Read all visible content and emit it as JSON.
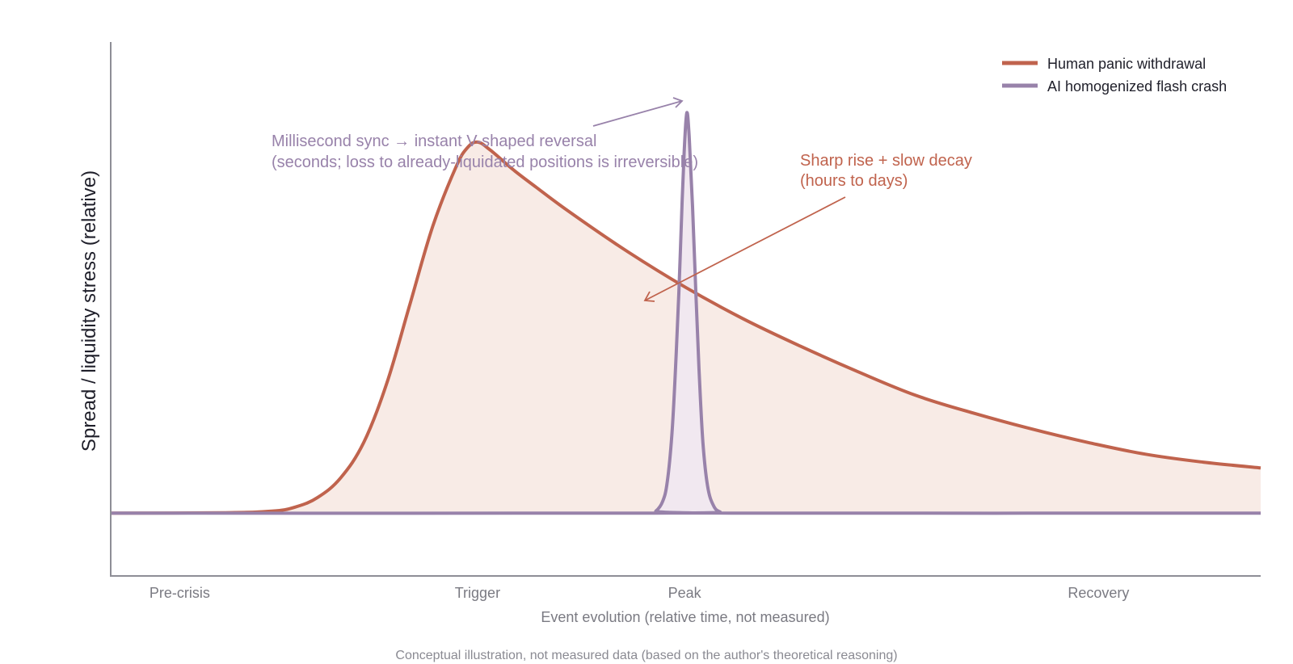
{
  "chart_data": {
    "type": "line",
    "title": "",
    "xlabel": "Event evolution (relative time, not measured)",
    "ylabel": "Spread / liquidity stress (relative)",
    "caption": "Conceptual illustration, not measured data (based on the author's theoretical reasoning)",
    "xlim": [
      0,
      1
    ],
    "ylim": [
      -0.16,
      1.2
    ],
    "grid": false,
    "legend_position": "top-right",
    "x_ticks": [
      {
        "x": 0.06,
        "label": "Pre-crisis"
      },
      {
        "x": 0.319,
        "label": "Trigger"
      },
      {
        "x": 0.499,
        "label": "Peak"
      },
      {
        "x": 0.859,
        "label": "Recovery"
      }
    ],
    "series": [
      {
        "name": "Human panic withdrawal",
        "color": "#c0634d",
        "fill": "#f8ebe6",
        "points": [
          [
            0.0,
            0.0
          ],
          [
            0.1,
            0.001
          ],
          [
            0.14,
            0.005
          ],
          [
            0.16,
            0.015
          ],
          [
            0.18,
            0.04
          ],
          [
            0.2,
            0.09
          ],
          [
            0.22,
            0.18
          ],
          [
            0.24,
            0.33
          ],
          [
            0.26,
            0.53
          ],
          [
            0.28,
            0.73
          ],
          [
            0.3,
            0.88
          ],
          [
            0.31,
            0.93
          ],
          [
            0.319,
            0.945
          ],
          [
            0.33,
            0.925
          ],
          [
            0.35,
            0.875
          ],
          [
            0.37,
            0.83
          ],
          [
            0.4,
            0.765
          ],
          [
            0.45,
            0.665
          ],
          [
            0.5,
            0.575
          ],
          [
            0.55,
            0.495
          ],
          [
            0.6,
            0.425
          ],
          [
            0.65,
            0.36
          ],
          [
            0.7,
            0.3
          ],
          [
            0.75,
            0.255
          ],
          [
            0.8,
            0.215
          ],
          [
            0.85,
            0.18
          ],
          [
            0.9,
            0.15
          ],
          [
            0.95,
            0.13
          ],
          [
            1.0,
            0.115
          ]
        ]
      },
      {
        "name": "AI homogenized flash crash",
        "color": "#9882aa",
        "fill": "#f1e8f0",
        "points": [
          [
            0.0,
            0.0
          ],
          [
            0.468,
            0.0
          ],
          [
            0.474,
            0.005
          ],
          [
            0.48,
            0.03
          ],
          [
            0.484,
            0.08
          ],
          [
            0.488,
            0.2
          ],
          [
            0.491,
            0.36
          ],
          [
            0.494,
            0.56
          ],
          [
            0.497,
            0.8
          ],
          [
            0.499,
            0.94
          ],
          [
            0.501,
            1.02
          ],
          [
            0.503,
            0.96
          ],
          [
            0.506,
            0.78
          ],
          [
            0.509,
            0.55
          ],
          [
            0.512,
            0.34
          ],
          [
            0.515,
            0.18
          ],
          [
            0.519,
            0.07
          ],
          [
            0.524,
            0.02
          ],
          [
            0.53,
            0.003
          ],
          [
            0.54,
            0.0
          ],
          [
            1.0,
            0.0
          ]
        ]
      }
    ],
    "annotations": [
      {
        "lines": [
          "Millisecond sync  →  instant V-shaped reversal",
          "(seconds; loss to already-liquidated positions is irreversible)"
        ],
        "color": "#9882aa",
        "arrow_target": [
          0.496,
          1.01
        ]
      },
      {
        "lines": [
          "Sharp rise + slow decay",
          "(hours to days)"
        ],
        "color": "#c0634d",
        "arrow_target": [
          0.464,
          0.525
        ]
      }
    ]
  }
}
